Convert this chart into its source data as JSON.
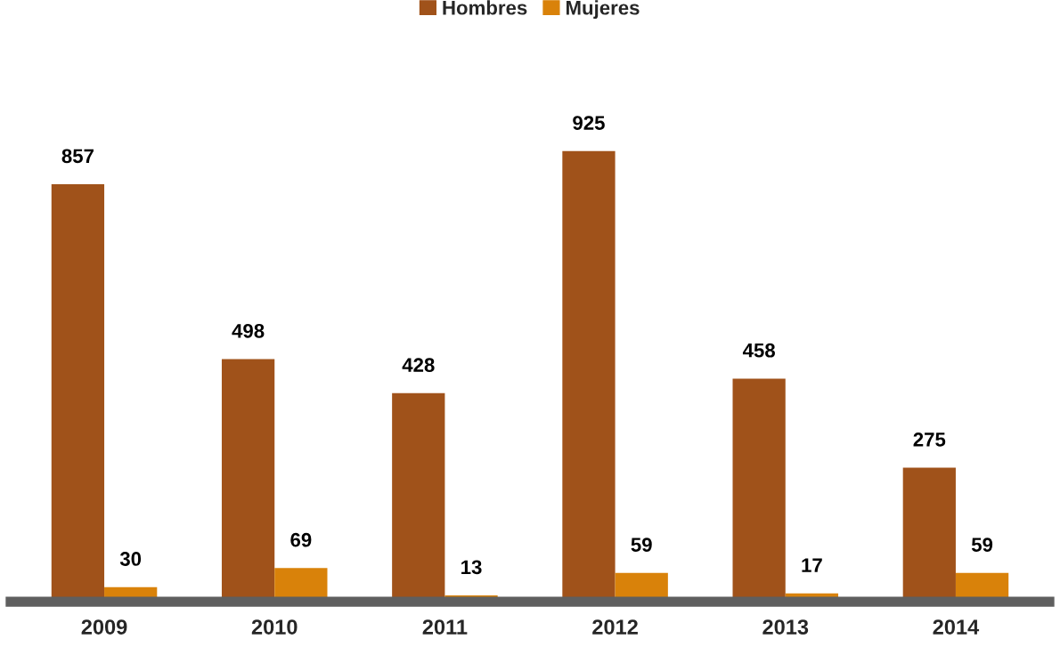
{
  "chart_data": {
    "type": "bar",
    "categories": [
      "2009",
      "2010",
      "2011",
      "2012",
      "2013",
      "2014"
    ],
    "series": [
      {
        "name": "Hombres",
        "color": "#a0521a",
        "values": [
          857,
          498,
          428,
          925,
          458,
          275
        ]
      },
      {
        "name": "Mujeres",
        "color": "#d9820a",
        "values": [
          30,
          69,
          13,
          59,
          17,
          59
        ]
      }
    ],
    "data_labels": true,
    "legend": "top",
    "grid": false
  }
}
